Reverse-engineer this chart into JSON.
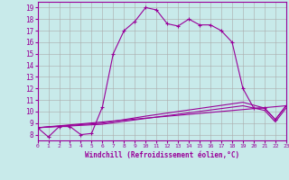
{
  "xlabel": "Windchill (Refroidissement éolien,°C)",
  "bg_color": "#c8eaea",
  "grid_color": "#aaaaaa",
  "line_color": "#990099",
  "xlim": [
    0,
    23
  ],
  "ylim": [
    7.5,
    19.5
  ],
  "xticks": [
    0,
    1,
    2,
    3,
    4,
    5,
    6,
    7,
    8,
    9,
    10,
    11,
    12,
    13,
    14,
    15,
    16,
    17,
    18,
    19,
    20,
    21,
    22,
    23
  ],
  "yticks": [
    8,
    9,
    10,
    11,
    12,
    13,
    14,
    15,
    16,
    17,
    18,
    19
  ],
  "series1_x": [
    0,
    1,
    2,
    3,
    4,
    5,
    6,
    7,
    8,
    9,
    10,
    11,
    12,
    13,
    14,
    15,
    16,
    17,
    18,
    19,
    20,
    21,
    22,
    23
  ],
  "series1_y": [
    8.6,
    7.8,
    8.7,
    8.7,
    8.0,
    8.1,
    10.4,
    15.0,
    17.0,
    17.8,
    19.0,
    18.8,
    17.6,
    17.4,
    18.0,
    17.5,
    17.5,
    17.0,
    16.0,
    12.0,
    10.3,
    10.3,
    9.3,
    10.5
  ],
  "series3_x": [
    0,
    23
  ],
  "series3_y": [
    8.6,
    10.5
  ],
  "series4_x": [
    0,
    6,
    10,
    19,
    21,
    22,
    23
  ],
  "series4_y": [
    8.6,
    9.0,
    9.6,
    10.8,
    10.3,
    9.3,
    10.5
  ],
  "series5_x": [
    0,
    6,
    10,
    19,
    21,
    22,
    23
  ],
  "series5_y": [
    8.6,
    8.9,
    9.4,
    10.5,
    10.1,
    9.1,
    10.3
  ]
}
